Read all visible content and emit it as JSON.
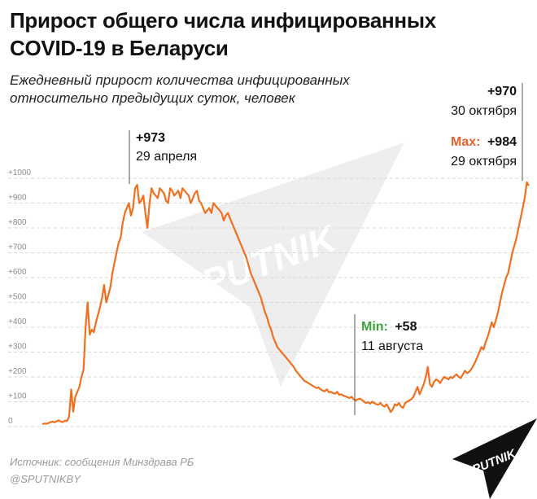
{
  "title": "Прирост общего числа инфицированных COVID-19 в Беларуси",
  "subtitle": "Ежедневный прирост количества инфицированных относительно предыдущих суток, человек",
  "source": "Источник: сообщения Минздрава РБ",
  "handle": "@SPUTNIKBY",
  "watermark": "SPUTNIK",
  "logo_text": "SPUTNIK",
  "colors": {
    "line": "#f07020",
    "max": "#e8622c",
    "min": "#3aa33a",
    "grid": "#d8d8d8",
    "watermark": "#efefef"
  },
  "annotations": {
    "peak1": {
      "value": "+973",
      "date": "29 апреля"
    },
    "last": {
      "value": "+970",
      "date": "30 октября"
    },
    "max": {
      "label": "Max:",
      "value": "+984",
      "date": "29 октября"
    },
    "min": {
      "label": "Min:",
      "value": "+58",
      "date": "11 августа"
    }
  },
  "chart_data": {
    "type": "line",
    "title": "Прирост общего числа инфицированных COVID-19 в Беларуси",
    "ylabel": "",
    "ylim": [
      0,
      1000
    ],
    "yticks": [
      "0",
      "+100",
      "+200",
      "+300",
      "+400",
      "+500",
      "+600",
      "+700",
      "+800",
      "+900",
      "+1000"
    ],
    "grid": true,
    "series": [
      {
        "values": [
          10,
          12,
          11,
          14,
          18,
          20,
          17,
          22,
          25,
          20,
          18,
          24,
          22,
          40,
          150,
          60,
          120,
          140,
          160,
          200,
          230,
          400,
          500,
          370,
          390,
          380,
          420,
          450,
          480,
          520,
          570,
          500,
          530,
          560,
          620,
          660,
          700,
          740,
          760,
          820,
          860,
          880,
          900,
          850,
          880,
          960,
          973,
          900,
          910,
          930,
          860,
          800,
          900,
          960,
          940,
          930,
          920,
          960,
          950,
          940,
          910,
          900,
          960,
          950,
          930,
          940,
          950,
          920,
          960,
          950,
          940,
          930,
          900,
          920,
          940,
          950,
          910,
          900,
          880,
          860,
          870,
          880,
          860,
          900,
          890,
          880,
          870,
          860,
          830,
          850,
          860,
          840,
          820,
          800,
          780,
          760,
          740,
          720,
          700,
          680,
          650,
          620,
          600,
          580,
          560,
          540,
          520,
          490,
          460,
          440,
          410,
          390,
          360,
          340,
          320,
          310,
          300,
          290,
          280,
          270,
          260,
          250,
          240,
          225,
          215,
          205,
          195,
          185,
          180,
          175,
          170,
          165,
          160,
          155,
          158,
          150,
          145,
          142,
          150,
          138,
          140,
          135,
          132,
          140,
          128,
          130,
          125,
          122,
          118,
          115,
          120,
          110,
          105,
          110,
          112,
          108,
          100,
          95,
          98,
          92,
          100,
          95,
          90,
          88,
          95,
          85,
          80,
          90,
          75,
          58,
          70,
          90,
          85,
          95,
          80,
          75,
          95,
          100,
          105,
          110,
          120,
          140,
          160,
          130,
          150,
          170,
          200,
          240,
          170,
          160,
          180,
          190,
          185,
          175,
          190,
          200,
          195,
          190,
          200,
          195,
          205,
          210,
          200,
          195,
          210,
          225,
          215,
          220,
          230,
          245,
          260,
          280,
          300,
          320,
          310,
          340,
          360,
          390,
          420,
          400,
          430,
          460,
          500,
          540,
          570,
          600,
          620,
          660,
          700,
          730,
          760,
          800,
          840,
          880,
          920,
          984,
          970
        ]
      }
    ]
  }
}
